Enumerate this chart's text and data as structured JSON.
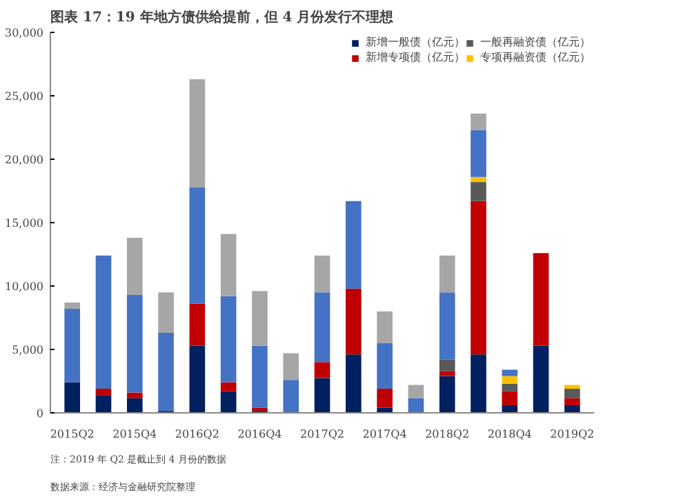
{
  "chart_data": {
    "type": "bar",
    "stacked": true,
    "title": "图表 17：19 年地方债供给提前，但 4 月份发行不理想",
    "categories": [
      "2015Q2",
      null,
      "2015Q4",
      null,
      "2016Q2",
      null,
      "2016Q4",
      null,
      "2017Q2",
      null,
      "2017Q4",
      null,
      "2018Q2",
      null,
      "2018Q4",
      null,
      "2019Q2"
    ],
    "series": [
      {
        "name": "新增一般债（亿元）",
        "color": "#002060",
        "values": [
          2400,
          1400,
          1150,
          150,
          5300,
          1700,
          150,
          0,
          2750,
          4600,
          400,
          0,
          2900,
          4600,
          600,
          5300,
          600
        ]
      },
      {
        "name": "新增专项债（亿元）",
        "color": "#c00000",
        "values": [
          0,
          500,
          450,
          0,
          3300,
          700,
          250,
          0,
          1250,
          5200,
          1500,
          0,
          400,
          12100,
          1100,
          7300,
          550
        ]
      },
      {
        "name": "一般再融资债（亿元）",
        "color": "#595959",
        "values": [
          0,
          0,
          0,
          0,
          0,
          0,
          0,
          0,
          0,
          0,
          0,
          0,
          900,
          1500,
          600,
          0,
          750
        ]
      },
      {
        "name": "专项再融资债（亿元）",
        "color": "#ffc000",
        "values": [
          0,
          0,
          0,
          0,
          0,
          0,
          0,
          0,
          0,
          0,
          0,
          0,
          0,
          400,
          600,
          0,
          300
        ]
      },
      {
        "color": "#4472c4",
        "values": [
          5800,
          10500,
          7700,
          6150,
          9200,
          6800,
          4900,
          2600,
          5500,
          6900,
          3600,
          1150,
          5300,
          3700,
          500,
          0,
          0
        ]
      },
      {
        "color": "#a6a6a6",
        "values": [
          500,
          0,
          4500,
          3200,
          8500,
          4900,
          4300,
          2100,
          2900,
          0,
          2500,
          1050,
          2900,
          1300,
          0,
          0,
          0
        ]
      }
    ],
    "ylim": [
      0,
      30000
    ],
    "yticks": [
      {
        "value": 0,
        "label": "0"
      },
      {
        "value": 5000,
        "label": "5,000"
      },
      {
        "value": 10000,
        "label": "10,000"
      },
      {
        "value": 15000,
        "label": "15,000"
      },
      {
        "value": 20000,
        "label": "20,000"
      },
      {
        "value": 25000,
        "label": "25,000"
      },
      {
        "value": 30000,
        "label": "30,000"
      }
    ],
    "legend": "top",
    "annotations": [
      "数据来源：经济与金融研究院整理",
      "注：2019 年 Q2 是截止到 4 月份的数据"
    ]
  }
}
